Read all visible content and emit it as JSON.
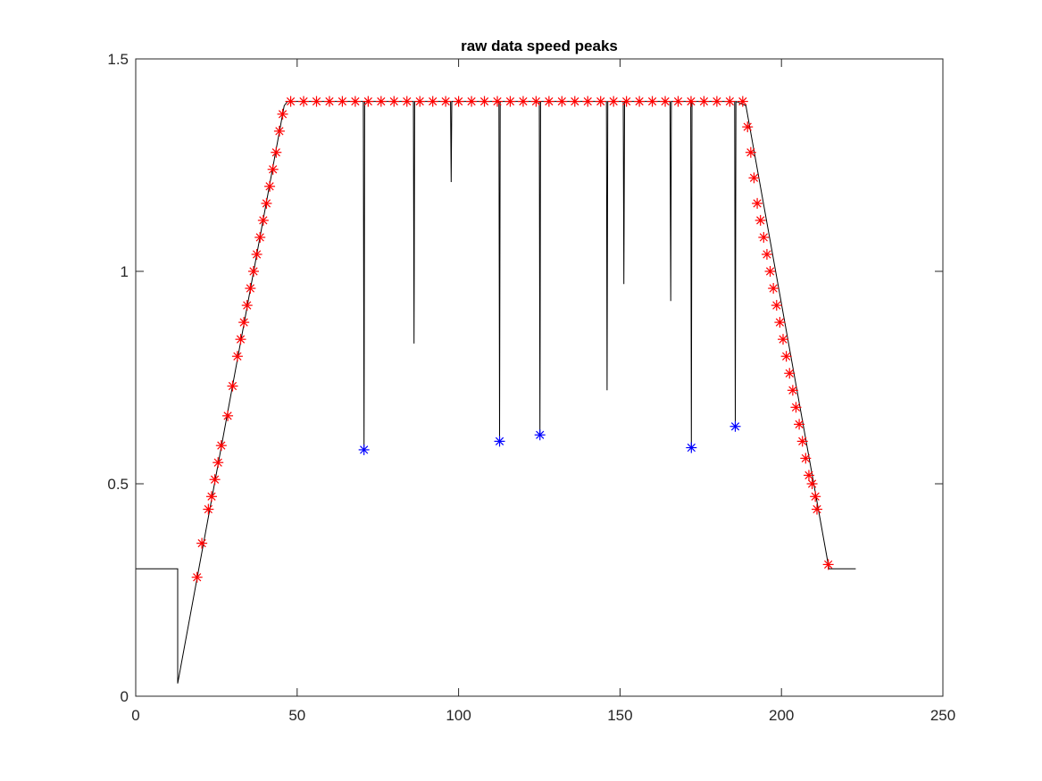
{
  "chart_data": {
    "type": "line",
    "title": "raw data speed peaks",
    "xlabel": "",
    "ylabel": "",
    "xlim": [
      0,
      250
    ],
    "ylim": [
      0,
      1.5
    ],
    "x_ticks": [
      0,
      50,
      100,
      150,
      200,
      250
    ],
    "y_ticks": [
      0,
      0.5,
      1,
      1.5
    ],
    "x_tick_labels": [
      "0",
      "50",
      "100",
      "150",
      "200",
      "250"
    ],
    "y_tick_labels": [
      "0",
      "0.5",
      "1",
      "1.5"
    ],
    "grid": false,
    "box": true,
    "series": [
      {
        "style": "line",
        "color": "#000000",
        "x": [
          0,
          13,
          13,
          46,
          47,
          70.5,
          70.7,
          70.9,
          86,
          86.2,
          86.4,
          97.5,
          97.7,
          97.9,
          112.5,
          112.7,
          112.9,
          125,
          125.2,
          125.4,
          145.8,
          146,
          146.2,
          151,
          151.2,
          151.4,
          165.5,
          165.7,
          165.9,
          171.9,
          172.1,
          172.3,
          185.5,
          185.7,
          185.9,
          189,
          214.5,
          214.7,
          223
        ],
        "y": [
          0.3,
          0.3,
          0.03,
          1.39,
          1.4,
          1.4,
          0.58,
          1.4,
          1.4,
          0.83,
          1.4,
          1.4,
          1.21,
          1.4,
          1.4,
          0.6,
          1.4,
          1.4,
          0.615,
          1.4,
          1.4,
          0.72,
          1.4,
          1.4,
          0.97,
          1.4,
          1.4,
          0.93,
          1.4,
          1.4,
          0.585,
          1.4,
          1.4,
          0.635,
          1.4,
          1.39,
          0.31,
          0.3,
          0.3
        ]
      },
      {
        "style": "markers",
        "marker": "*",
        "color": "#ff0000",
        "x": [
          19,
          20.5,
          22.5,
          23.5,
          24.5,
          25.5,
          26.5,
          28.5,
          30,
          31.5,
          32.5,
          33.5,
          34.5,
          35.5,
          36.5,
          37.5,
          38.5,
          39.5,
          40.5,
          41.5,
          42.5,
          43.5,
          44.5,
          45.5,
          48,
          52,
          56,
          60,
          64,
          68,
          72,
          76,
          80,
          84,
          88,
          92,
          96,
          100,
          104,
          108,
          112,
          116,
          120,
          124,
          128,
          132,
          136,
          140,
          144,
          148,
          152,
          156,
          160,
          164,
          168,
          172,
          176,
          180,
          184,
          188,
          189.5,
          190.5,
          191.5,
          192.5,
          193.5,
          194.5,
          195.5,
          196.5,
          197.5,
          198.5,
          199.5,
          200.5,
          201.5,
          202.5,
          203.5,
          204.5,
          205.5,
          206.5,
          207.5,
          208.5,
          209.5,
          210.5,
          211,
          214.5
        ],
        "y": [
          0.28,
          0.36,
          0.44,
          0.47,
          0.51,
          0.55,
          0.59,
          0.66,
          0.73,
          0.8,
          0.84,
          0.88,
          0.92,
          0.96,
          1.0,
          1.04,
          1.08,
          1.12,
          1.16,
          1.2,
          1.24,
          1.28,
          1.33,
          1.37,
          1.4,
          1.4,
          1.4,
          1.4,
          1.4,
          1.4,
          1.4,
          1.4,
          1.4,
          1.4,
          1.4,
          1.4,
          1.4,
          1.4,
          1.4,
          1.4,
          1.4,
          1.4,
          1.4,
          1.4,
          1.4,
          1.4,
          1.4,
          1.4,
          1.4,
          1.4,
          1.4,
          1.4,
          1.4,
          1.4,
          1.4,
          1.4,
          1.4,
          1.4,
          1.4,
          1.4,
          1.34,
          1.28,
          1.22,
          1.16,
          1.12,
          1.08,
          1.04,
          1.0,
          0.96,
          0.92,
          0.88,
          0.84,
          0.8,
          0.76,
          0.72,
          0.68,
          0.64,
          0.6,
          0.56,
          0.52,
          0.5,
          0.47,
          0.44,
          0.31
        ]
      },
      {
        "style": "markers",
        "marker": "*",
        "color": "#0000ff",
        "x": [
          70.7,
          112.7,
          125.2,
          172.1,
          185.7
        ],
        "y": [
          0.58,
          0.6,
          0.615,
          0.585,
          0.635
        ]
      }
    ]
  }
}
